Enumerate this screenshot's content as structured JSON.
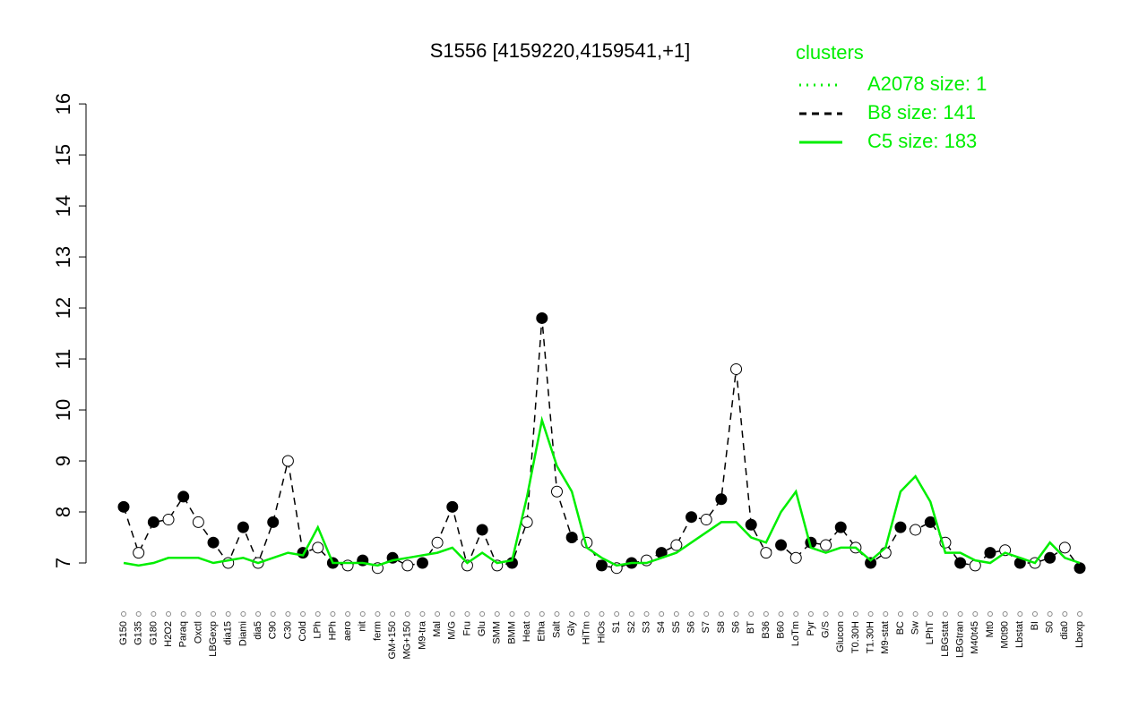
{
  "chart_data": {
    "type": "line",
    "title": "S1556 [4159220,4159541,+1]",
    "legend_title": "clusters",
    "legend_color": "#00ee00",
    "categories": [
      "G150",
      "G135",
      "G180",
      "H2O2",
      "Paraq",
      "Oxctl",
      "LBGexp",
      "dia15",
      "Diami",
      "dia5",
      "C90",
      "C30",
      "Cold",
      "LPh",
      "HPh",
      "aero",
      "nit",
      "ferm",
      "GM+150",
      "MG+150",
      "M9-tra",
      "Mal",
      "M/G",
      "Fru",
      "Glu",
      "SMM",
      "BMM",
      "Heat",
      "Etha",
      "Salt",
      "Gly",
      "HiTm",
      "HiOs",
      "S1",
      "S2",
      "S3",
      "S4",
      "S5",
      "S6",
      "S7",
      "S8",
      "S6",
      "BT",
      "B36",
      "B60",
      "LoTm",
      "Pyr",
      "G/S",
      "Glucon",
      "T0.30H",
      "T1.30H",
      "M9-stat",
      "BC",
      "Sw",
      "LPhT",
      "LBGstat",
      "LBGtran",
      "M40t45",
      "Mt0",
      "M0t90",
      "Lbstat",
      "BI",
      "S0",
      "dia0",
      "Lbexp"
    ],
    "series": [
      {
        "name": "A2078 size: 1",
        "color": "#00ee00",
        "style": "dotted",
        "values": [
          null,
          null,
          null,
          null,
          null,
          null,
          null,
          null,
          null,
          null,
          null,
          null,
          null,
          null,
          null,
          null,
          null,
          null,
          null,
          null,
          null,
          null,
          null,
          null,
          null,
          null,
          null,
          null,
          null,
          null,
          null,
          null,
          null,
          null,
          null,
          null,
          null,
          null,
          null,
          null,
          null,
          null,
          null,
          null,
          null,
          null,
          null,
          null,
          null,
          null,
          null,
          null,
          null,
          null,
          null,
          null,
          null,
          null,
          null,
          null,
          null,
          null,
          null,
          null,
          null
        ]
      },
      {
        "name": "B8 size: 141",
        "color": "#000000",
        "style": "dashed",
        "values": [
          8.1,
          7.2,
          7.8,
          7.85,
          8.3,
          7.8,
          7.4,
          7.0,
          7.7,
          7.0,
          7.8,
          9.0,
          7.2,
          7.3,
          7.0,
          6.95,
          7.05,
          6.9,
          7.1,
          6.95,
          7.0,
          7.4,
          8.1,
          6.95,
          7.65,
          6.95,
          7.0,
          7.8,
          11.8,
          8.4,
          7.5,
          7.4,
          6.95,
          6.9,
          7.0,
          7.05,
          7.2,
          7.35,
          7.9,
          7.85,
          8.25,
          10.8,
          7.75,
          7.2,
          7.35,
          7.1,
          7.4,
          7.35,
          7.7,
          7.3,
          7.0,
          7.2,
          7.7,
          7.65,
          7.8,
          7.4,
          7.0,
          6.95,
          7.2,
          7.25,
          7.0,
          7.0,
          7.1,
          7.3,
          6.9
        ]
      },
      {
        "name": "C5 size: 183",
        "color": "#00ee00",
        "style": "solid",
        "values": [
          7.0,
          6.95,
          7.0,
          7.1,
          7.1,
          7.1,
          7.0,
          7.05,
          7.1,
          7.0,
          7.1,
          7.2,
          7.15,
          7.7,
          7.0,
          7.0,
          7.0,
          6.95,
          7.05,
          7.1,
          7.15,
          7.2,
          7.3,
          7.0,
          7.2,
          7.0,
          7.05,
          8.3,
          9.8,
          8.9,
          8.4,
          7.3,
          7.1,
          6.95,
          7.0,
          7.0,
          7.1,
          7.2,
          7.4,
          7.6,
          7.8,
          7.8,
          7.5,
          7.4,
          8.0,
          8.4,
          7.3,
          7.2,
          7.3,
          7.3,
          7.05,
          7.3,
          8.4,
          8.7,
          8.2,
          7.2,
          7.2,
          7.05,
          7.0,
          7.2,
          7.1,
          7.0,
          7.4,
          7.1,
          7.0
        ]
      }
    ],
    "ylim": [
      6.8,
      16.3
    ],
    "yticks": [
      7,
      8,
      9,
      10,
      11,
      12,
      13,
      14,
      15,
      16
    ]
  }
}
